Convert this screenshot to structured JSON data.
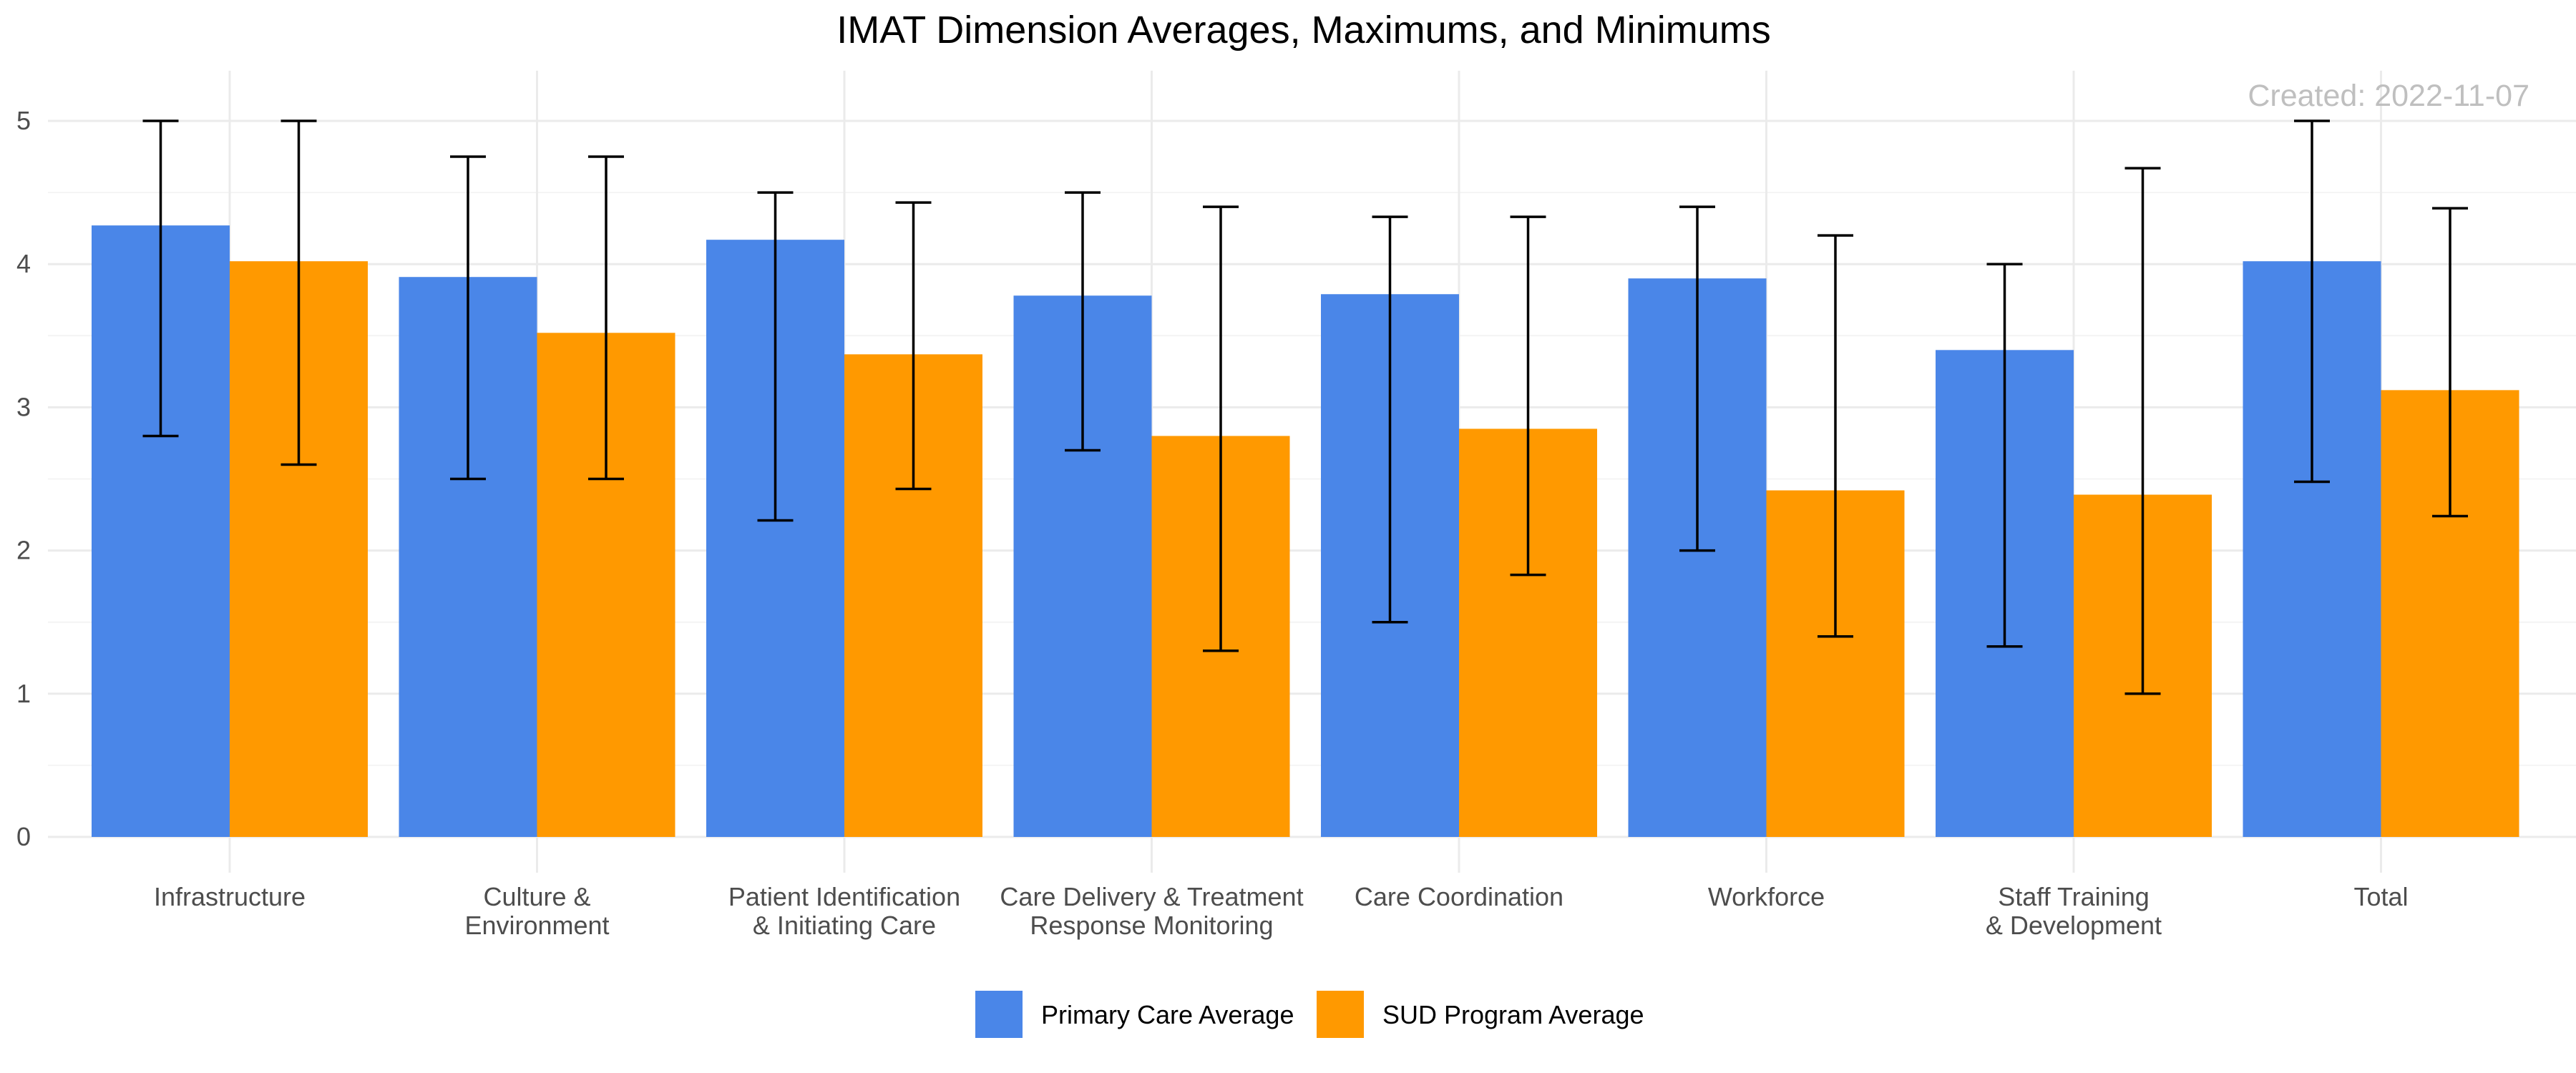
{
  "chart_data": {
    "type": "bar",
    "title": "IMAT Dimension Averages, Maximums, and Minimums",
    "annotation": "Created: 2022-11-07",
    "categories": [
      [
        "Infrastructure"
      ],
      [
        "Culture &",
        "Environment"
      ],
      [
        "Patient Identification",
        "& Initiating Care"
      ],
      [
        "Care Delivery & Treatment",
        "Response Monitoring"
      ],
      [
        "Care Coordination"
      ],
      [
        "Workforce"
      ],
      [
        "Staff Training",
        "& Development"
      ],
      [
        "Total"
      ]
    ],
    "series": [
      {
        "name": "Primary Care Average",
        "color": "#4A86E8",
        "values": [
          4.27,
          3.91,
          4.17,
          3.78,
          3.79,
          3.9,
          3.4,
          4.02
        ],
        "max": [
          5.0,
          4.75,
          4.5,
          4.5,
          4.33,
          4.4,
          4.0,
          5.0
        ],
        "min": [
          2.8,
          2.5,
          2.21,
          2.7,
          1.5,
          2.0,
          1.33,
          2.48
        ]
      },
      {
        "name": "SUD Program Average",
        "color": "#FF9900",
        "values": [
          4.02,
          3.52,
          3.37,
          2.8,
          2.85,
          2.42,
          2.39,
          3.12
        ],
        "max": [
          5.0,
          4.75,
          4.43,
          4.4,
          4.33,
          4.2,
          4.67,
          4.39
        ],
        "min": [
          2.6,
          2.5,
          2.43,
          1.3,
          1.83,
          1.4,
          1.0,
          2.24
        ]
      }
    ],
    "ylim": [
      -0.25,
      5.35
    ],
    "yticks": [
      0,
      1,
      2,
      3,
      4,
      5
    ],
    "grid": true,
    "legend_position": "bottom"
  }
}
